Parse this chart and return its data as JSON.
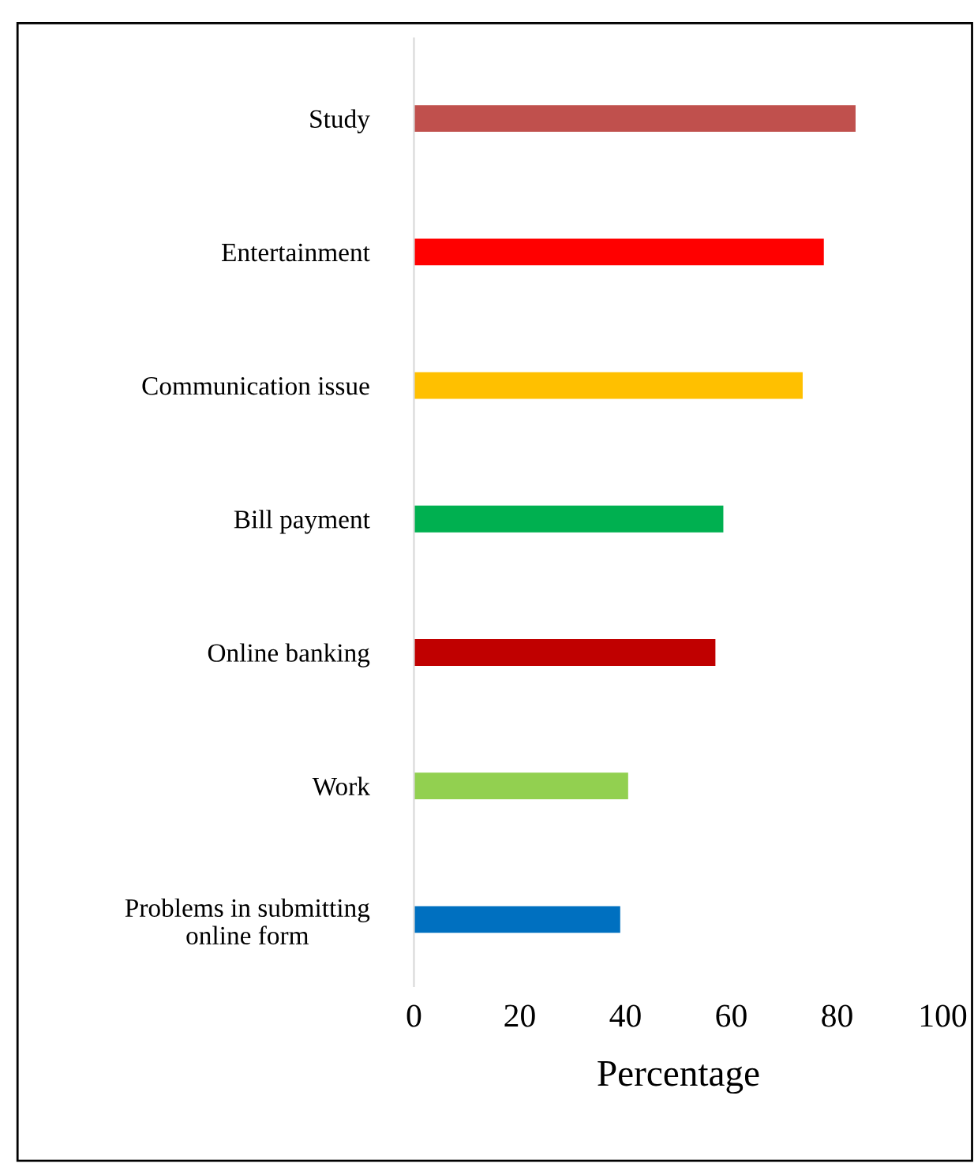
{
  "chart_data": {
    "type": "bar",
    "orientation": "horizontal",
    "xlabel": "Percentage",
    "categories": [
      "Study",
      "Entertainment",
      "Communication issue",
      "Bill payment",
      "Online banking",
      "Work",
      "Problems in submitting\nonline form"
    ],
    "values": [
      83.5,
      77.5,
      73.5,
      58.5,
      57,
      40.5,
      39
    ],
    "colors": [
      "#c0504d",
      "#ff0000",
      "#ffc000",
      "#00b050",
      "#c00000",
      "#92d050",
      "#0070c0"
    ],
    "xlim": [
      0,
      100
    ],
    "xticks": [
      0,
      20,
      40,
      60,
      80,
      100
    ],
    "grid": false,
    "legend": false
  }
}
